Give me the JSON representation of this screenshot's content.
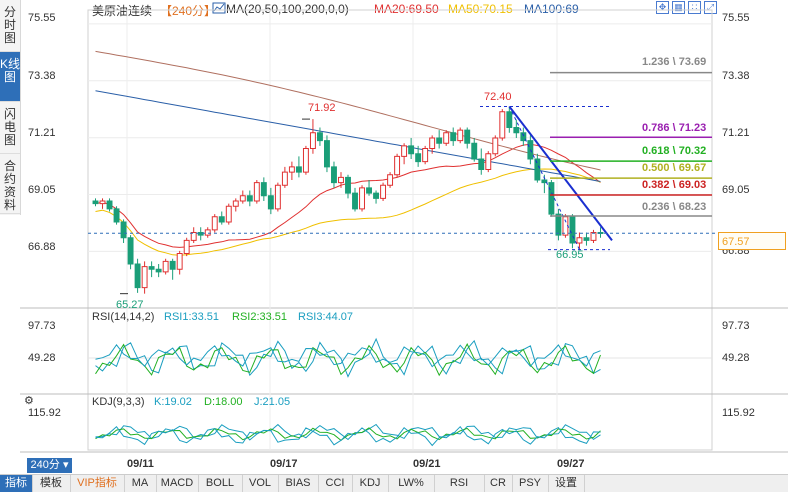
{
  "side_tabs": [
    "分时图",
    "K线图",
    "闪电图",
    "合约资料"
  ],
  "header": {
    "name": "美原油连续",
    "period": "【240分】",
    "ma_label": "MA(20,50,100,200,0,0)",
    "ma20": "MA20:69.50",
    "ma50": "MA50:70.15",
    "ma100": "MA100:69"
  },
  "colors": {
    "up": "#e03030",
    "down": "#1a9e78",
    "ma20": "#e03030",
    "ma50": "#f0c000",
    "ma100": "#2a5fa8",
    "ma200": "#b07060",
    "accent": "#2e6fb8"
  },
  "price_axis": {
    "left": [
      "75.55",
      "73.38",
      "71.21",
      "69.05",
      "66.88"
    ],
    "right": [
      "75.55",
      "73.38",
      "71.21",
      "69.05",
      "66.88"
    ],
    "last": "67.57"
  },
  "annotations": {
    "high1": "71.92",
    "high2": "72.40",
    "low1": "65.27",
    "low2": "66.95"
  },
  "fib_levels": [
    {
      "text": "1.236 \\ 73.69",
      "color": "#888888"
    },
    {
      "text": "0.786 \\ 71.23",
      "color": "#9a1fb0"
    },
    {
      "text": "0.618 \\ 70.32",
      "color": "#22b022"
    },
    {
      "text": "0.500 \\ 69.67",
      "color": "#b0b020"
    },
    {
      "text": "0.382 \\ 69.03",
      "color": "#cc2222"
    },
    {
      "text": "0.236 \\ 68.23",
      "color": "#888888"
    }
  ],
  "rsi": {
    "label": "RSI(14,14,2)",
    "rsi1": "RSI1:33.51",
    "rsi2": "RSI2:33.51",
    "rsi3": "RSI3:44.07",
    "axis": [
      "97.73",
      "49.28"
    ]
  },
  "kdj": {
    "label": "KDJ(9,3,3)",
    "k": "K:19.02",
    "d": "D:18.00",
    "j": "J:21.05",
    "axis": [
      "115.92"
    ]
  },
  "period_button": "240分",
  "dates": [
    "09/11",
    "09/17",
    "09/21",
    "09/27"
  ],
  "bottom_tabs": [
    "指标",
    "模板",
    "VIP指标",
    "MA",
    "MACD",
    "BOLL",
    "VOL",
    "BIAS",
    "CCI",
    "KDJ",
    "LW%",
    "RSI",
    "CR",
    "PSY",
    "设置"
  ],
  "chart_data": {
    "type": "candlestick",
    "ylim": [
      64.8,
      76.0
    ],
    "candles": [
      [
        68.8,
        68.9,
        68.6,
        68.7
      ],
      [
        68.7,
        68.9,
        68.5,
        68.8
      ],
      [
        68.8,
        68.9,
        68.4,
        68.5
      ],
      [
        68.5,
        68.6,
        67.9,
        68.0
      ],
      [
        68.0,
        68.1,
        67.2,
        67.4
      ],
      [
        67.4,
        67.5,
        66.2,
        66.4
      ],
      [
        66.4,
        66.6,
        65.3,
        65.5
      ],
      [
        65.5,
        66.5,
        65.27,
        66.3
      ],
      [
        66.3,
        66.5,
        65.9,
        66.2
      ],
      [
        66.2,
        66.4,
        65.9,
        66.1
      ],
      [
        66.1,
        66.6,
        66.0,
        66.5
      ],
      [
        66.5,
        66.6,
        65.8,
        66.2
      ],
      [
        66.2,
        66.9,
        66.0,
        66.8
      ],
      [
        66.8,
        67.4,
        66.7,
        67.3
      ],
      [
        67.3,
        67.8,
        67.2,
        67.6
      ],
      [
        67.6,
        67.8,
        67.3,
        67.5
      ],
      [
        67.5,
        67.8,
        67.4,
        67.7
      ],
      [
        67.7,
        68.3,
        67.6,
        68.2
      ],
      [
        68.2,
        68.4,
        67.9,
        68.0
      ],
      [
        68.0,
        68.7,
        67.9,
        68.6
      ],
      [
        68.6,
        68.9,
        68.4,
        68.8
      ],
      [
        68.8,
        69.2,
        68.7,
        69.0
      ],
      [
        69.0,
        69.2,
        68.6,
        68.8
      ],
      [
        68.8,
        69.6,
        68.7,
        69.5
      ],
      [
        69.5,
        69.7,
        68.8,
        69.0
      ],
      [
        69.0,
        69.3,
        68.3,
        68.5
      ],
      [
        68.5,
        69.5,
        68.4,
        69.4
      ],
      [
        69.4,
        70.1,
        69.3,
        69.9
      ],
      [
        69.9,
        70.3,
        69.6,
        70.1
      ],
      [
        70.1,
        70.5,
        69.7,
        69.9
      ],
      [
        69.9,
        70.9,
        69.8,
        70.8
      ],
      [
        70.8,
        71.92,
        70.6,
        71.4
      ],
      [
        71.4,
        71.6,
        70.9,
        71.1
      ],
      [
        71.1,
        71.3,
        69.9,
        70.1
      ],
      [
        70.1,
        70.3,
        69.3,
        69.5
      ],
      [
        69.5,
        69.9,
        69.3,
        69.7
      ],
      [
        69.7,
        69.8,
        68.9,
        69.1
      ],
      [
        69.1,
        69.3,
        68.4,
        68.5
      ],
      [
        68.5,
        69.4,
        68.4,
        69.3
      ],
      [
        69.3,
        69.6,
        69.0,
        69.1
      ],
      [
        69.1,
        69.2,
        68.7,
        68.9
      ],
      [
        68.9,
        69.5,
        68.8,
        69.4
      ],
      [
        69.4,
        69.9,
        69.3,
        69.8
      ],
      [
        69.8,
        70.6,
        69.7,
        70.5
      ],
      [
        70.5,
        71.0,
        70.2,
        70.9
      ],
      [
        70.9,
        71.2,
        70.4,
        70.6
      ],
      [
        70.6,
        70.9,
        70.1,
        70.3
      ],
      [
        70.3,
        70.9,
        70.2,
        70.8
      ],
      [
        70.8,
        71.3,
        70.6,
        71.2
      ],
      [
        71.2,
        71.5,
        70.8,
        71.0
      ],
      [
        71.0,
        71.5,
        70.9,
        71.4
      ],
      [
        71.4,
        71.6,
        70.9,
        71.1
      ],
      [
        71.1,
        71.6,
        71.0,
        71.5
      ],
      [
        71.5,
        71.6,
        70.8,
        71.0
      ],
      [
        71.0,
        71.2,
        70.3,
        70.4
      ],
      [
        70.4,
        70.8,
        69.8,
        70.0
      ],
      [
        70.0,
        70.7,
        69.9,
        70.6
      ],
      [
        70.6,
        71.3,
        70.5,
        71.2
      ],
      [
        71.2,
        72.3,
        71.1,
        72.2
      ],
      [
        72.2,
        72.4,
        71.4,
        71.6
      ],
      [
        71.6,
        71.9,
        71.2,
        71.4
      ],
      [
        71.4,
        71.6,
        70.9,
        71.1
      ],
      [
        71.1,
        71.3,
        70.2,
        70.4
      ],
      [
        70.4,
        70.6,
        69.5,
        69.6
      ],
      [
        69.6,
        69.8,
        69.1,
        69.5
      ],
      [
        69.5,
        69.6,
        68.2,
        68.3
      ],
      [
        68.3,
        68.5,
        67.3,
        67.5
      ],
      [
        67.5,
        68.3,
        67.4,
        68.2
      ],
      [
        68.2,
        68.3,
        67.0,
        67.2
      ],
      [
        67.2,
        67.6,
        66.95,
        67.4
      ],
      [
        67.4,
        67.6,
        67.1,
        67.3
      ],
      [
        67.3,
        67.7,
        67.2,
        67.6
      ],
      [
        67.6,
        67.8,
        67.4,
        67.57
      ]
    ]
  }
}
